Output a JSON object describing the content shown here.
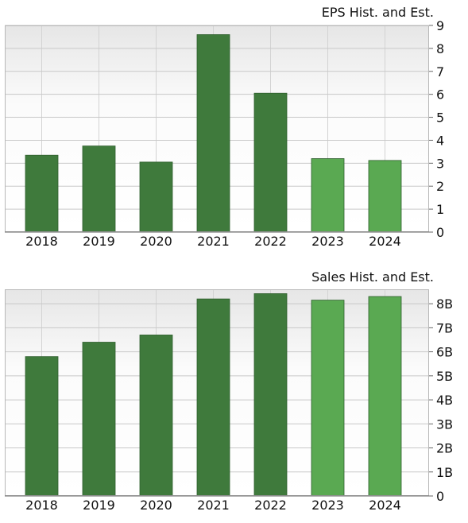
{
  "chart_data": [
    {
      "type": "bar",
      "title": "EPS Hist. and Est.",
      "categories": [
        "2018",
        "2019",
        "2020",
        "2021",
        "2022",
        "2023",
        "2024"
      ],
      "values": [
        3.35,
        3.75,
        3.05,
        8.6,
        6.05,
        3.2,
        3.12
      ],
      "estimate_flags": [
        false,
        false,
        false,
        false,
        false,
        true,
        true
      ],
      "ylim": [
        0,
        9
      ],
      "ticks": [
        0,
        1,
        2,
        3,
        4,
        5,
        6,
        7,
        8,
        9
      ],
      "tick_labels": [
        "0",
        "1",
        "2",
        "3",
        "4",
        "5",
        "6",
        "7",
        "8",
        "9"
      ],
      "grid": true,
      "colors": {
        "historical": "#3f7a3c",
        "estimate": "#5aa952"
      }
    },
    {
      "type": "bar",
      "title": "Sales Hist. and Est.",
      "categories": [
        "2018",
        "2019",
        "2020",
        "2021",
        "2022",
        "2023",
        "2024"
      ],
      "values": [
        5.8,
        6.4,
        6.7,
        8.2,
        8.42,
        8.15,
        8.3
      ],
      "estimate_flags": [
        false,
        false,
        false,
        false,
        false,
        true,
        true
      ],
      "ylim": [
        0,
        8.6
      ],
      "ticks": [
        0,
        1,
        2,
        3,
        4,
        5,
        6,
        7,
        8
      ],
      "tick_labels": [
        "0",
        "1B",
        "2B",
        "3B",
        "4B",
        "5B",
        "6B",
        "7B",
        "8B"
      ],
      "grid": true,
      "colors": {
        "historical": "#3f7a3c",
        "estimate": "#5aa952"
      }
    }
  ]
}
